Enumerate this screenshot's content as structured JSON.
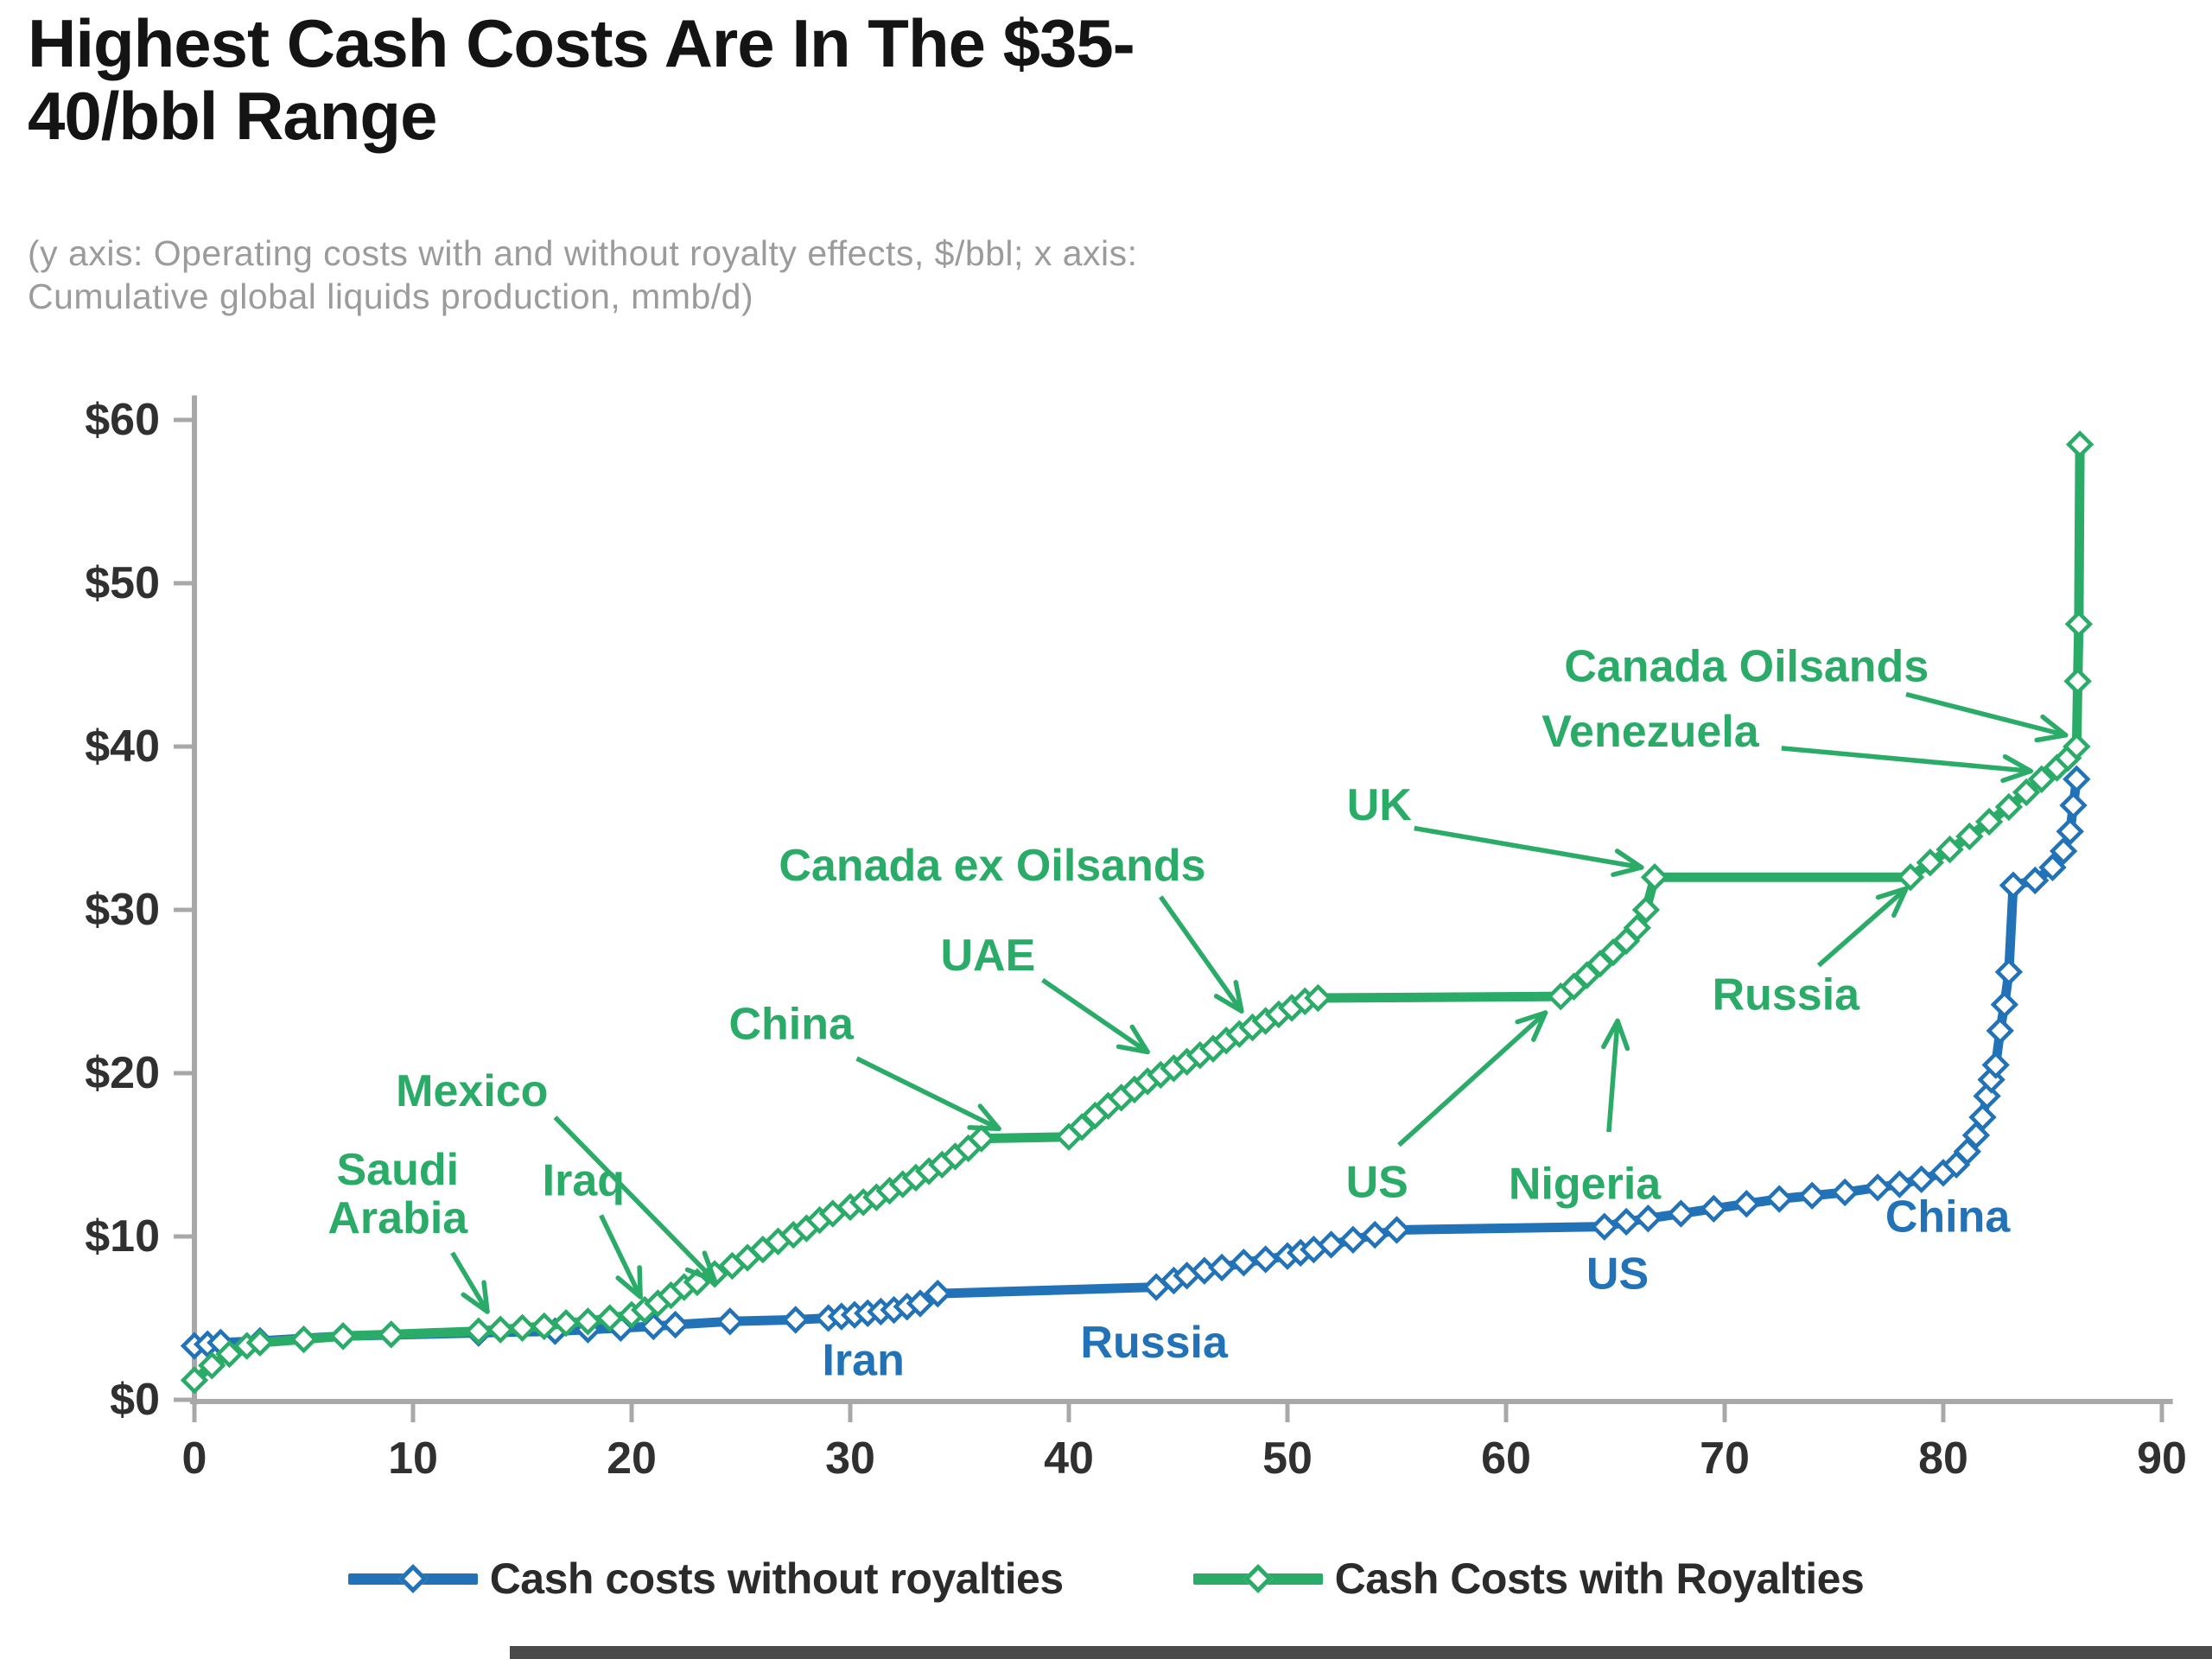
{
  "title": {
    "line1": "Highest Cash Costs Are In The $35-",
    "line2": "40/bbl Range"
  },
  "subtitle": {
    "line1": "(y axis: Operating costs with and without royalty effects, $/bbl; x axis:",
    "line2": "Cumulative global liquids production, mmb/d)"
  },
  "colors": {
    "blue": "#2272b8",
    "green": "#2aab68",
    "axis": "#a8a8a8",
    "tick_label": "#303030",
    "title": "#141414",
    "subtitle": "#9b9b9b",
    "legend_text": "#2b2b2b",
    "footer_bar": "#4a4a4a"
  },
  "legend": {
    "items": [
      {
        "label": "Cash costs without royalties",
        "color_key": "blue"
      },
      {
        "label": "Cash Costs with Royalties",
        "color_key": "green"
      }
    ]
  },
  "chart_data": {
    "type": "line",
    "title": "Highest Cash Costs Are In The $35-40/bbl Range",
    "xlabel": "Cumulative global liquids production, mmb/d",
    "ylabel": "Operating costs with and without royalty effects, $/bbl",
    "xlim": [
      0,
      90
    ],
    "ylim": [
      0,
      60
    ],
    "grid": false,
    "legend_position": "bottom",
    "x_ticks": [
      {
        "value": 0,
        "label": "0"
      },
      {
        "value": 10,
        "label": "10"
      },
      {
        "value": 20,
        "label": "20"
      },
      {
        "value": 30,
        "label": "30"
      },
      {
        "value": 40,
        "label": "40"
      },
      {
        "value": 50,
        "label": "50"
      },
      {
        "value": 60,
        "label": "60"
      },
      {
        "value": 70,
        "label": "70"
      },
      {
        "value": 80,
        "label": "80"
      },
      {
        "value": 90,
        "label": "90"
      }
    ],
    "y_ticks": [
      {
        "value": 0,
        "label": "$0"
      },
      {
        "value": 10,
        "label": "$10"
      },
      {
        "value": 20,
        "label": "$20"
      },
      {
        "value": 30,
        "label": "$30"
      },
      {
        "value": 40,
        "label": "$40"
      },
      {
        "value": 50,
        "label": "$50"
      },
      {
        "value": 60,
        "label": "$60"
      }
    ],
    "series": [
      {
        "name": "Cash costs without royalties",
        "color_key": "blue",
        "points": [
          [
            0,
            3.3
          ],
          [
            0.6,
            3.4
          ],
          [
            1.2,
            3.5
          ],
          [
            3,
            3.6
          ],
          [
            6.8,
            3.9
          ],
          [
            13,
            4.1
          ],
          [
            16.5,
            4.2
          ],
          [
            18,
            4.3
          ],
          [
            19.5,
            4.4
          ],
          [
            21,
            4.5
          ],
          [
            22,
            4.6
          ],
          [
            24.5,
            4.8
          ],
          [
            27.5,
            4.9
          ],
          [
            29,
            5.0
          ],
          [
            29.6,
            5.1
          ],
          [
            30.2,
            5.2
          ],
          [
            30.8,
            5.3
          ],
          [
            31.4,
            5.4
          ],
          [
            32,
            5.5
          ],
          [
            32.6,
            5.7
          ],
          [
            33.2,
            5.9
          ],
          [
            34,
            6.5
          ],
          [
            44,
            6.9
          ],
          [
            44.8,
            7.3
          ],
          [
            45.4,
            7.6
          ],
          [
            46.2,
            7.9
          ],
          [
            47,
            8.1
          ],
          [
            48,
            8.4
          ],
          [
            49,
            8.6
          ],
          [
            50,
            8.8
          ],
          [
            50.6,
            9.0
          ],
          [
            51.2,
            9.2
          ],
          [
            52,
            9.5
          ],
          [
            53,
            9.8
          ],
          [
            54,
            10.1
          ],
          [
            55,
            10.4
          ],
          [
            64.5,
            10.6
          ],
          [
            65.5,
            10.9
          ],
          [
            66.5,
            11.1
          ],
          [
            68,
            11.4
          ],
          [
            69.5,
            11.7
          ],
          [
            71,
            12.0
          ],
          [
            72.5,
            12.3
          ],
          [
            74,
            12.5
          ],
          [
            75.5,
            12.7
          ],
          [
            77,
            13.0
          ],
          [
            78,
            13.2
          ],
          [
            79,
            13.5
          ],
          [
            80,
            13.9
          ],
          [
            80.6,
            14.4
          ],
          [
            81.1,
            15.2
          ],
          [
            81.5,
            16.2
          ],
          [
            81.8,
            17.3
          ],
          [
            82.0,
            18.6
          ],
          [
            82.2,
            19.6
          ],
          [
            82.4,
            20.5
          ],
          [
            82.6,
            22.6
          ],
          [
            82.8,
            24.2
          ],
          [
            83.0,
            26.2
          ],
          [
            83.2,
            31.5
          ],
          [
            84.2,
            31.8
          ],
          [
            85.0,
            32.6
          ],
          [
            85.5,
            33.6
          ],
          [
            85.8,
            34.8
          ],
          [
            85.95,
            36.4
          ],
          [
            86.1,
            38.0
          ]
        ]
      },
      {
        "name": "Cash Costs with Royalties",
        "color_key": "green",
        "points": [
          [
            0,
            1.2
          ],
          [
            0.8,
            2.1
          ],
          [
            1.6,
            2.8
          ],
          [
            2.4,
            3.3
          ],
          [
            3,
            3.5
          ],
          [
            5,
            3.7
          ],
          [
            6.8,
            3.9
          ],
          [
            9,
            4.0
          ],
          [
            13,
            4.2
          ],
          [
            14,
            4.3
          ],
          [
            15,
            4.4
          ],
          [
            16,
            4.5
          ],
          [
            17,
            4.7
          ],
          [
            18,
            4.8
          ],
          [
            19,
            5.0
          ],
          [
            20,
            5.2
          ],
          [
            20.6,
            5.5
          ],
          [
            21.2,
            5.9
          ],
          [
            21.8,
            6.4
          ],
          [
            22.4,
            6.9
          ],
          [
            23,
            7.2
          ],
          [
            23.8,
            7.7
          ],
          [
            24.6,
            8.2
          ],
          [
            25.3,
            8.7
          ],
          [
            26,
            9.2
          ],
          [
            26.7,
            9.7
          ],
          [
            27.4,
            10.1
          ],
          [
            28,
            10.5
          ],
          [
            28.6,
            11.0
          ],
          [
            29.2,
            11.4
          ],
          [
            30,
            11.8
          ],
          [
            30.6,
            12.1
          ],
          [
            31.2,
            12.4
          ],
          [
            31.8,
            12.8
          ],
          [
            32.4,
            13.2
          ],
          [
            33,
            13.6
          ],
          [
            33.6,
            14.0
          ],
          [
            34.2,
            14.4
          ],
          [
            34.8,
            14.9
          ],
          [
            35.4,
            15.4
          ],
          [
            36,
            16.0
          ],
          [
            40,
            16.1
          ],
          [
            40.6,
            16.7
          ],
          [
            41.2,
            17.4
          ],
          [
            41.8,
            18.0
          ],
          [
            42.4,
            18.5
          ],
          [
            43,
            19.0
          ],
          [
            43.6,
            19.5
          ],
          [
            44.2,
            19.9
          ],
          [
            44.8,
            20.3
          ],
          [
            45.4,
            20.7
          ],
          [
            46,
            21.1
          ],
          [
            46.6,
            21.5
          ],
          [
            47.2,
            22.0
          ],
          [
            47.8,
            22.4
          ],
          [
            48.4,
            22.8
          ],
          [
            49,
            23.2
          ],
          [
            49.6,
            23.6
          ],
          [
            50.2,
            24.0
          ],
          [
            50.8,
            24.4
          ],
          [
            51.4,
            24.6
          ],
          [
            62.5,
            24.7
          ],
          [
            63.1,
            25.3
          ],
          [
            63.7,
            26.0
          ],
          [
            64.3,
            26.7
          ],
          [
            64.9,
            27.4
          ],
          [
            65.5,
            28.1
          ],
          [
            66,
            28.9
          ],
          [
            66.4,
            30.0
          ],
          [
            66.8,
            32.0
          ],
          [
            78.5,
            32.0
          ],
          [
            79.4,
            32.9
          ],
          [
            80.3,
            33.7
          ],
          [
            81.2,
            34.5
          ],
          [
            82.1,
            35.4
          ],
          [
            83.0,
            36.3
          ],
          [
            83.8,
            37.2
          ],
          [
            84.5,
            38.0
          ],
          [
            85.2,
            38.7
          ],
          [
            85.7,
            39.3
          ],
          [
            86.1,
            40.0
          ],
          [
            86.15,
            44.0
          ],
          [
            86.2,
            47.5
          ],
          [
            86.25,
            58.5
          ]
        ]
      }
    ],
    "annotations": [
      {
        "text": [
          "Saudi",
          "Arabia"
        ],
        "color_key": "green",
        "x": 9.3,
        "y": 12.6,
        "arrow": [
          11.8,
          9.0,
          13.4,
          5.4
        ]
      },
      {
        "text": [
          "Iraq"
        ],
        "color_key": "green",
        "x": 17.8,
        "y": 13.4,
        "arrow": [
          18.6,
          11.3,
          20.4,
          6.3
        ]
      },
      {
        "text": [
          "Mexico"
        ],
        "color_key": "green",
        "x": 12.7,
        "y": 18.9,
        "arrow": [
          16.5,
          17.3,
          23.8,
          7.3
        ]
      },
      {
        "text": [
          "China"
        ],
        "color_key": "green",
        "x": 27.3,
        "y": 23.0,
        "arrow": [
          30.3,
          20.9,
          36.8,
          16.6
        ]
      },
      {
        "text": [
          "UAE"
        ],
        "color_key": "green",
        "x": 36.3,
        "y": 27.2,
        "arrow": [
          38.8,
          25.7,
          43.6,
          21.3
        ]
      },
      {
        "text": [
          "Canada ex Oilsands"
        ],
        "color_key": "green",
        "x": 36.5,
        "y": 32.7,
        "arrow": [
          44.2,
          30.8,
          47.9,
          23.8
        ]
      },
      {
        "text": [
          "UK"
        ],
        "color_key": "green",
        "x": 54.2,
        "y": 36.4,
        "arrow": [
          55.8,
          35.0,
          66.2,
          32.6
        ]
      },
      {
        "text": [
          "US"
        ],
        "color_key": "green",
        "x": 54.1,
        "y": 13.3,
        "arrow": [
          55.1,
          15.6,
          61.8,
          23.7
        ]
      },
      {
        "text": [
          "Nigeria"
        ],
        "color_key": "green",
        "x": 63.6,
        "y": 13.2,
        "arrow": [
          64.7,
          16.4,
          65.1,
          23.2
        ]
      },
      {
        "text": [
          "Russia"
        ],
        "color_key": "green",
        "x": 72.8,
        "y": 24.8,
        "arrow": [
          74.3,
          26.6,
          78.3,
          31.3
        ]
      },
      {
        "text": [
          "Canada Oilsands"
        ],
        "color_key": "green",
        "x": 71.0,
        "y": 44.9,
        "arrow": [
          78.3,
          43.2,
          85.6,
          40.7
        ]
      },
      {
        "text": [
          "Venezuela"
        ],
        "color_key": "green",
        "x": 66.6,
        "y": 40.9,
        "arrow": [
          72.6,
          39.9,
          84.0,
          38.5
        ]
      },
      {
        "text": [
          "Iran"
        ],
        "color_key": "blue",
        "x": 30.6,
        "y": 2.4
      },
      {
        "text": [
          "Russia"
        ],
        "color_key": "blue",
        "x": 43.9,
        "y": 3.5
      },
      {
        "text": [
          "US"
        ],
        "color_key": "blue",
        "x": 65.1,
        "y": 7.7
      },
      {
        "text": [
          "China"
        ],
        "color_key": "blue",
        "x": 80.2,
        "y": 11.2
      }
    ]
  }
}
